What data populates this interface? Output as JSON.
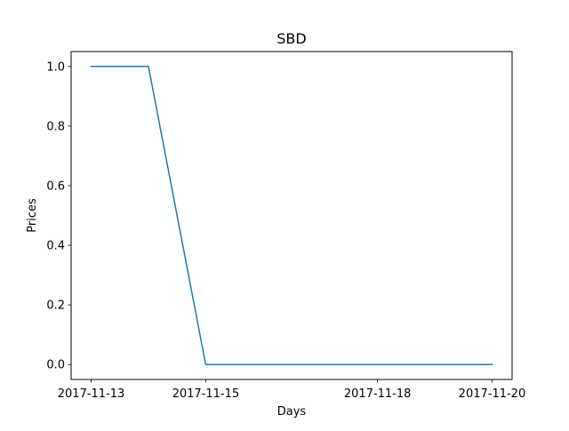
{
  "chart_data": {
    "type": "line",
    "title": "SBD",
    "xlabel": "Days",
    "ylabel": "Prices",
    "x": [
      "2017-11-13",
      "2017-11-14",
      "2017-11-15",
      "2017-11-16",
      "2017-11-17",
      "2017-11-18",
      "2017-11-19",
      "2017-11-20"
    ],
    "series": [
      {
        "values": [
          1.0,
          1.0,
          0.0,
          0.0,
          0.0,
          0.0,
          0.0,
          0.0
        ],
        "color": "#1f77b4"
      }
    ],
    "xticks": [
      "2017-11-13",
      "2017-11-15",
      "2017-11-18",
      "2017-11-20"
    ],
    "yticks": [
      "0.0",
      "0.2",
      "0.4",
      "0.6",
      "0.8",
      "1.0"
    ],
    "ylim": [
      -0.05,
      1.05
    ],
    "grid": false,
    "legend": "none"
  }
}
